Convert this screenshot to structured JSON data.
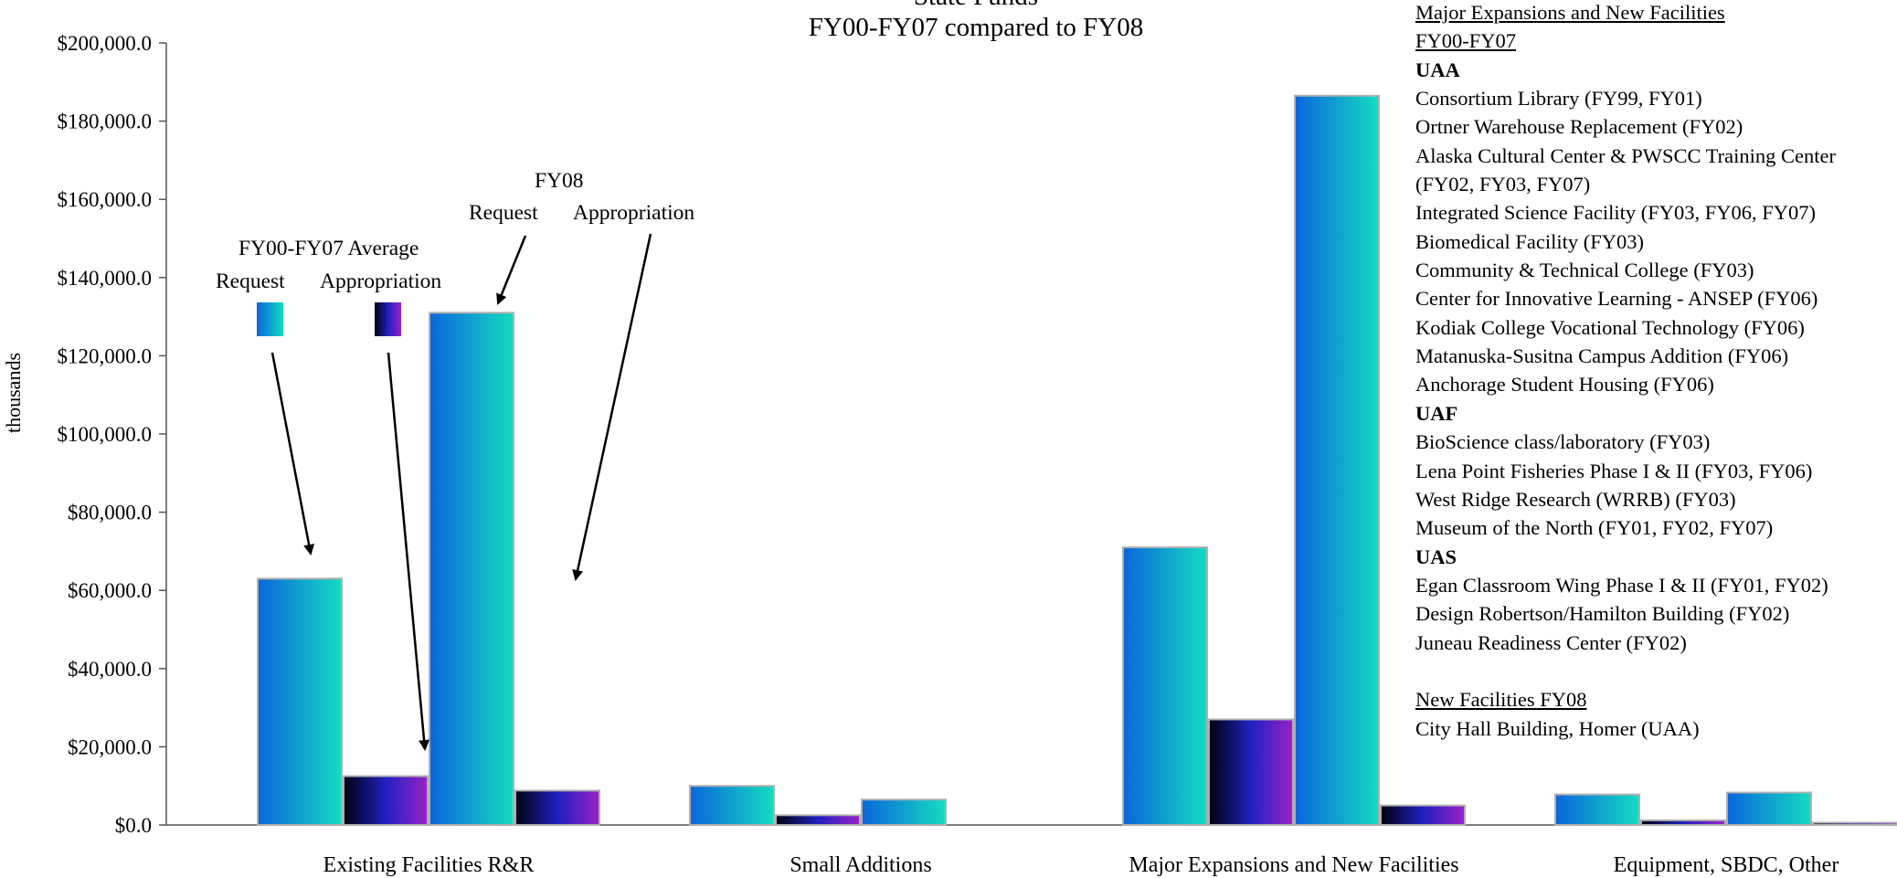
{
  "chart_data": {
    "type": "bar",
    "title_lines": [
      "State Funds",
      "FY00-FY07 compared to FY08"
    ],
    "ylabel": "thousands",
    "ylim": [
      0,
      200000
    ],
    "yticks": [
      0,
      20000,
      40000,
      60000,
      80000,
      100000,
      120000,
      140000,
      160000,
      180000,
      200000
    ],
    "ytick_labels": [
      "$0.0",
      "$20,000.0",
      "$40,000.0",
      "$60,000.0",
      "$80,000.0",
      "$100,000.0",
      "$120,000.0",
      "$140,000.0",
      "$160,000.0",
      "$180,000.0",
      "$200,000.0"
    ],
    "categories": [
      "Existing Facilities R&R",
      "Small Additions",
      "Major Expansions and New Facilities",
      "Equipment, SBDC, Other"
    ],
    "series": [
      {
        "period": "FY00-FY07 Average",
        "kind": "Request",
        "values": [
          63000,
          10000,
          71000,
          7800
        ]
      },
      {
        "period": "FY00-FY07 Average",
        "kind": "Appropriation",
        "values": [
          12500,
          2500,
          27000,
          1200
        ]
      },
      {
        "period": "FY08",
        "kind": "Request",
        "values": [
          131000,
          6500,
          186500,
          8300
        ]
      },
      {
        "period": "FY08",
        "kind": "Appropriation",
        "values": [
          8800,
          0,
          5000,
          600
        ]
      }
    ],
    "colors": {
      "request": [
        "#0a66dc",
        "#14dcc0"
      ],
      "appropriation": [
        "#000010",
        "#2020c0",
        "#9a22c8"
      ],
      "axis": "#555555",
      "bar_edge": "#b0b0b0"
    }
  },
  "titles": {
    "line1": "State Funds",
    "line2": "FY00-FY07 compared to FY08"
  },
  "legend": {
    "fy0007_label": "FY00-FY07 Average",
    "fy08_label": "FY08",
    "request": "Request",
    "appropriation": "Appropriation"
  },
  "projects": [
    {
      "text": "Major Expansions and New Facilities",
      "style": "u"
    },
    {
      "text": "FY00-FY07",
      "style": "u"
    },
    {
      "text": "UAA",
      "style": "b"
    },
    {
      "text": "Consortium Library (FY99, FY01)",
      "style": ""
    },
    {
      "text": "Ortner Warehouse Replacement (FY02)",
      "style": ""
    },
    {
      "text": "Alaska Cultural Center & PWSCC Training Center",
      "style": ""
    },
    {
      "text": "(FY02, FY03, FY07)",
      "style": ""
    },
    {
      "text": "Integrated Science Facility (FY03, FY06, FY07)",
      "style": ""
    },
    {
      "text": "Biomedical Facility (FY03)",
      "style": ""
    },
    {
      "text": "Community & Technical College (FY03)",
      "style": ""
    },
    {
      "text": "Center for Innovative Learning - ANSEP (FY06)",
      "style": ""
    },
    {
      "text": "Kodiak College Vocational Technology (FY06)",
      "style": ""
    },
    {
      "text": "Matanuska-Susitna Campus Addition (FY06)",
      "style": ""
    },
    {
      "text": "Anchorage Student Housing (FY06)",
      "style": ""
    },
    {
      "text": "UAF",
      "style": "b"
    },
    {
      "text": "BioScience class/laboratory (FY03)",
      "style": ""
    },
    {
      "text": "Lena Point Fisheries Phase I & II (FY03, FY06)",
      "style": ""
    },
    {
      "text": "West Ridge Research (WRRB) (FY03)",
      "style": ""
    },
    {
      "text": "Museum of the North (FY01, FY02, FY07)",
      "style": ""
    },
    {
      "text": "UAS",
      "style": "b"
    },
    {
      "text": "Egan Classroom Wing Phase I & II (FY01, FY02)",
      "style": ""
    },
    {
      "text": "Design Robertson/Hamilton Building (FY02)",
      "style": ""
    },
    {
      "text": "Juneau Readiness Center (FY02)",
      "style": ""
    },
    {
      "text": "",
      "style": "gap"
    },
    {
      "text": "New Facilities FY08",
      "style": "u"
    },
    {
      "text": "City Hall Building, Homer (UAA)",
      "style": ""
    }
  ]
}
